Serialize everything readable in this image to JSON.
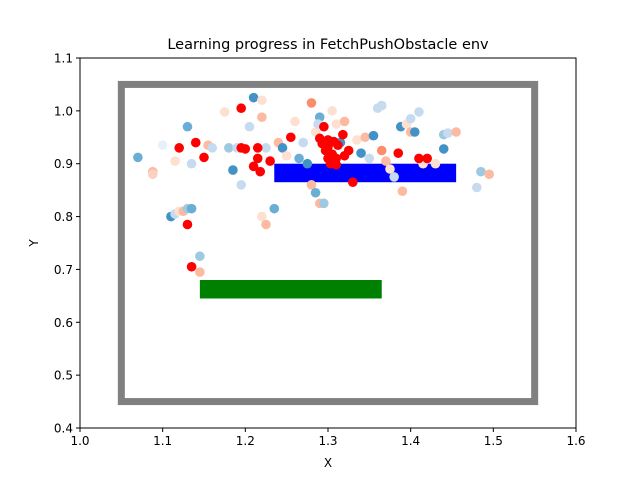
{
  "chart_data": {
    "type": "scatter",
    "title": "Learning progress in FetchPushObstacle env",
    "xlabel": "X",
    "ylabel": "Y",
    "xlim": [
      1.0,
      1.6
    ],
    "ylim": [
      0.4,
      1.1
    ],
    "x_ticks": [
      "1.0",
      "1.1",
      "1.2",
      "1.3",
      "1.4",
      "1.5",
      "1.6"
    ],
    "y_ticks": [
      "0.4",
      "0.5",
      "0.6",
      "0.7",
      "0.8",
      "0.9",
      "1.0",
      "1.1"
    ],
    "grid": false,
    "colors": {
      "boundary": "#808080",
      "obstacle": "#0000ff",
      "target": "#008000",
      "achieved": "#ff0000",
      "axes": "#000000"
    },
    "shapes": [
      {
        "name": "boundary",
        "kind": "outline",
        "x0": 1.05,
        "x1": 1.55,
        "y0": 0.45,
        "y1": 1.05
      },
      {
        "name": "obstacle",
        "kind": "filled",
        "x0": 1.235,
        "x1": 1.455,
        "y0": 0.865,
        "y1": 0.9
      },
      {
        "name": "target-region",
        "kind": "filled",
        "x0": 1.145,
        "x1": 1.365,
        "y0": 0.645,
        "y1": 0.68
      }
    ],
    "points": [
      {
        "x": 1.07,
        "y": 0.912,
        "c": "#6aaed6"
      },
      {
        "x": 1.088,
        "y": 0.885,
        "c": "#fcbba1"
      },
      {
        "x": 1.088,
        "y": 0.88,
        "c": "#fdd0c2"
      },
      {
        "x": 1.1,
        "y": 0.935,
        "c": "#e8f1fa"
      },
      {
        "x": 1.11,
        "y": 0.8,
        "c": "#4292c6"
      },
      {
        "x": 1.115,
        "y": 0.805,
        "c": "#c6dbef"
      },
      {
        "x": 1.12,
        "y": 0.81,
        "c": "#fde0d2"
      },
      {
        "x": 1.125,
        "y": 0.81,
        "c": "#fcbba1"
      },
      {
        "x": 1.13,
        "y": 0.815,
        "c": "#9ecae1"
      },
      {
        "x": 1.135,
        "y": 0.815,
        "c": "#6aaed6"
      },
      {
        "x": 1.13,
        "y": 0.785,
        "c": "#ff0000"
      },
      {
        "x": 1.135,
        "y": 0.705,
        "c": "#ff0000"
      },
      {
        "x": 1.145,
        "y": 0.725,
        "c": "#9ecae1"
      },
      {
        "x": 1.145,
        "y": 0.695,
        "c": "#fcbba1"
      },
      {
        "x": 1.115,
        "y": 0.905,
        "c": "#fde0d2"
      },
      {
        "x": 1.12,
        "y": 0.93,
        "c": "#ff0000"
      },
      {
        "x": 1.13,
        "y": 0.97,
        "c": "#6aaed6"
      },
      {
        "x": 1.135,
        "y": 0.9,
        "c": "#c6dbef"
      },
      {
        "x": 1.14,
        "y": 0.94,
        "c": "#ff0000"
      },
      {
        "x": 1.15,
        "y": 0.912,
        "c": "#ff0000"
      },
      {
        "x": 1.155,
        "y": 0.935,
        "c": "#fcbba1"
      },
      {
        "x": 1.16,
        "y": 0.93,
        "c": "#c6dbef"
      },
      {
        "x": 1.175,
        "y": 0.998,
        "c": "#fde0d2"
      },
      {
        "x": 1.18,
        "y": 0.93,
        "c": "#9ecae1"
      },
      {
        "x": 1.185,
        "y": 0.888,
        "c": "#4292c6"
      },
      {
        "x": 1.19,
        "y": 0.93,
        "c": "#c6dbef"
      },
      {
        "x": 1.195,
        "y": 1.005,
        "c": "#ff0000"
      },
      {
        "x": 1.195,
        "y": 0.93,
        "c": "#ff0000"
      },
      {
        "x": 1.195,
        "y": 0.86,
        "c": "#c6dbef"
      },
      {
        "x": 1.2,
        "y": 0.928,
        "c": "#ff0000"
      },
      {
        "x": 1.205,
        "y": 0.97,
        "c": "#c6dbef"
      },
      {
        "x": 1.21,
        "y": 0.895,
        "c": "#ff0000"
      },
      {
        "x": 1.21,
        "y": 1.025,
        "c": "#4292c6"
      },
      {
        "x": 1.215,
        "y": 0.93,
        "c": "#ff0000"
      },
      {
        "x": 1.215,
        "y": 0.91,
        "c": "#ff0000"
      },
      {
        "x": 1.218,
        "y": 0.885,
        "c": "#ff0000"
      },
      {
        "x": 1.22,
        "y": 0.988,
        "c": "#fcbba1"
      },
      {
        "x": 1.225,
        "y": 0.93,
        "c": "#c6dbef"
      },
      {
        "x": 1.23,
        "y": 0.905,
        "c": "#ff0000"
      },
      {
        "x": 1.22,
        "y": 1.02,
        "c": "#fde0d2"
      },
      {
        "x": 1.22,
        "y": 0.8,
        "c": "#fde0d2"
      },
      {
        "x": 1.225,
        "y": 0.785,
        "c": "#fcbba1"
      },
      {
        "x": 1.235,
        "y": 0.815,
        "c": "#6aaed6"
      },
      {
        "x": 1.24,
        "y": 0.94,
        "c": "#fcbba1"
      },
      {
        "x": 1.245,
        "y": 0.93,
        "c": "#4292c6"
      },
      {
        "x": 1.25,
        "y": 0.915,
        "c": "#fde0d2"
      },
      {
        "x": 1.255,
        "y": 0.95,
        "c": "#ff0000"
      },
      {
        "x": 1.26,
        "y": 0.98,
        "c": "#fde0d2"
      },
      {
        "x": 1.265,
        "y": 0.91,
        "c": "#6aaed6"
      },
      {
        "x": 1.27,
        "y": 0.94,
        "c": "#c6dbef"
      },
      {
        "x": 1.275,
        "y": 0.9,
        "c": "#4292c6"
      },
      {
        "x": 1.28,
        "y": 0.86,
        "c": "#fcbba1"
      },
      {
        "x": 1.28,
        "y": 1.015,
        "c": "#fc8d6b"
      },
      {
        "x": 1.285,
        "y": 0.96,
        "c": "#fde0d2"
      },
      {
        "x": 1.285,
        "y": 0.845,
        "c": "#6aaed6"
      },
      {
        "x": 1.29,
        "y": 0.825,
        "c": "#fcbba1"
      },
      {
        "x": 1.295,
        "y": 0.825,
        "c": "#9ecae1"
      },
      {
        "x": 1.29,
        "y": 0.988,
        "c": "#6aaed6"
      },
      {
        "x": 1.288,
        "y": 0.975,
        "c": "#c6dbef"
      },
      {
        "x": 1.295,
        "y": 0.97,
        "c": "#ff0000"
      },
      {
        "x": 1.29,
        "y": 0.948,
        "c": "#ff0000"
      },
      {
        "x": 1.293,
        "y": 0.938,
        "c": "#ff0000"
      },
      {
        "x": 1.3,
        "y": 0.932,
        "c": "#ff0000"
      },
      {
        "x": 1.297,
        "y": 0.925,
        "c": "#ff0000"
      },
      {
        "x": 1.305,
        "y": 0.918,
        "c": "#ff0000"
      },
      {
        "x": 1.31,
        "y": 0.91,
        "c": "#ff0000"
      },
      {
        "x": 1.3,
        "y": 0.91,
        "c": "#ff0000"
      },
      {
        "x": 1.307,
        "y": 0.942,
        "c": "#ff0000"
      },
      {
        "x": 1.312,
        "y": 0.935,
        "c": "#ff0000"
      },
      {
        "x": 1.318,
        "y": 0.955,
        "c": "#ff0000"
      },
      {
        "x": 1.32,
        "y": 0.915,
        "c": "#ff0000"
      },
      {
        "x": 1.325,
        "y": 0.925,
        "c": "#ff0000"
      },
      {
        "x": 1.303,
        "y": 0.9,
        "c": "#ff0000"
      },
      {
        "x": 1.3,
        "y": 0.945,
        "c": "#ff0000"
      },
      {
        "x": 1.31,
        "y": 0.898,
        "c": "#ff0000"
      },
      {
        "x": 1.315,
        "y": 0.94,
        "c": "#4292c6"
      },
      {
        "x": 1.31,
        "y": 0.975,
        "c": "#fde0d2"
      },
      {
        "x": 1.305,
        "y": 1.0,
        "c": "#fde0d2"
      },
      {
        "x": 1.32,
        "y": 0.98,
        "c": "#fcbba1"
      },
      {
        "x": 1.33,
        "y": 0.865,
        "c": "#ff0000"
      },
      {
        "x": 1.335,
        "y": 0.945,
        "c": "#fde0d2"
      },
      {
        "x": 1.34,
        "y": 0.92,
        "c": "#4292c6"
      },
      {
        "x": 1.345,
        "y": 0.95,
        "c": "#fcbba1"
      },
      {
        "x": 1.35,
        "y": 0.91,
        "c": "#c6dbef"
      },
      {
        "x": 1.355,
        "y": 0.953,
        "c": "#4292c6"
      },
      {
        "x": 1.36,
        "y": 1.005,
        "c": "#c6dbef"
      },
      {
        "x": 1.365,
        "y": 0.925,
        "c": "#fc8d6b"
      },
      {
        "x": 1.365,
        "y": 1.01,
        "c": "#c6dbef"
      },
      {
        "x": 1.37,
        "y": 0.905,
        "c": "#fcbba1"
      },
      {
        "x": 1.375,
        "y": 0.89,
        "c": "#fde0d2"
      },
      {
        "x": 1.38,
        "y": 0.875,
        "c": "#c6dbef"
      },
      {
        "x": 1.385,
        "y": 0.92,
        "c": "#ff0000"
      },
      {
        "x": 1.388,
        "y": 0.97,
        "c": "#4292c6"
      },
      {
        "x": 1.39,
        "y": 0.848,
        "c": "#fcbba1"
      },
      {
        "x": 1.395,
        "y": 0.975,
        "c": "#fde0d2"
      },
      {
        "x": 1.4,
        "y": 0.96,
        "c": "#fcbba1"
      },
      {
        "x": 1.4,
        "y": 0.985,
        "c": "#c6dbef"
      },
      {
        "x": 1.405,
        "y": 0.96,
        "c": "#4292c6"
      },
      {
        "x": 1.41,
        "y": 0.998,
        "c": "#c6dbef"
      },
      {
        "x": 1.41,
        "y": 0.91,
        "c": "#ff0000"
      },
      {
        "x": 1.415,
        "y": 0.9,
        "c": "#fde0d2"
      },
      {
        "x": 1.42,
        "y": 0.91,
        "c": "#ff0000"
      },
      {
        "x": 1.43,
        "y": 0.9,
        "c": "#fde0d2"
      },
      {
        "x": 1.44,
        "y": 0.928,
        "c": "#4292c6"
      },
      {
        "x": 1.44,
        "y": 0.955,
        "c": "#9ecae1"
      },
      {
        "x": 1.445,
        "y": 0.958,
        "c": "#c6dbef"
      },
      {
        "x": 1.455,
        "y": 0.96,
        "c": "#fcbba1"
      },
      {
        "x": 1.48,
        "y": 0.855,
        "c": "#c6dbef"
      },
      {
        "x": 1.485,
        "y": 0.885,
        "c": "#9ecae1"
      },
      {
        "x": 1.495,
        "y": 0.88,
        "c": "#fcbba1"
      }
    ]
  }
}
